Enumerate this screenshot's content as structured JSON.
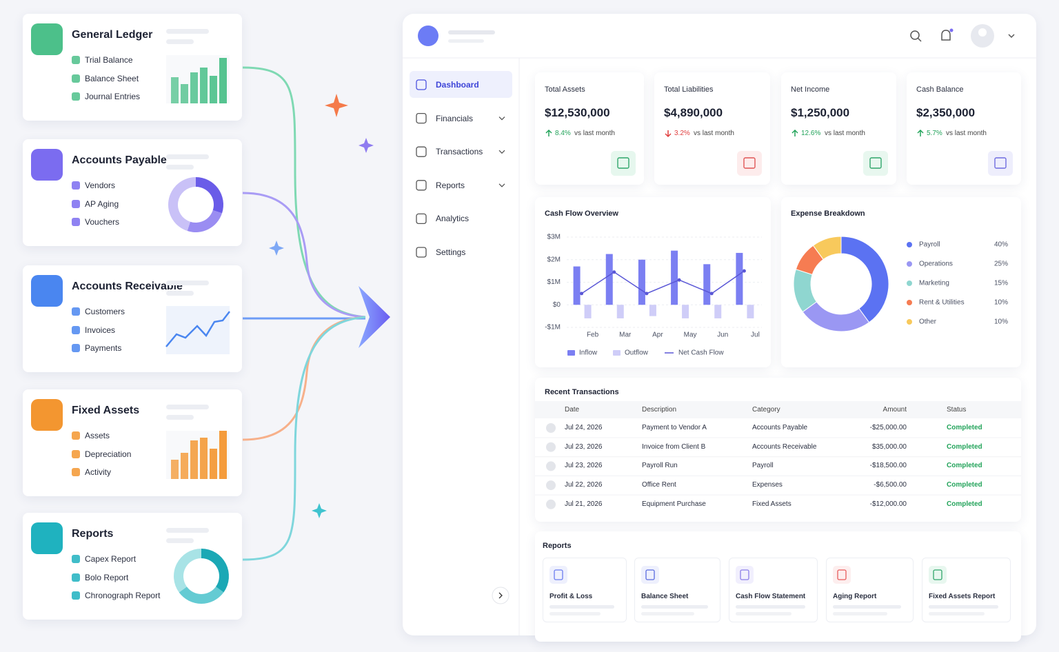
{
  "modules": [
    {
      "title": "General Ledger",
      "items": [
        "Trial Balance",
        "Balance Sheet",
        "Journal Entries"
      ]
    },
    {
      "title": "Accounts Payable",
      "items": [
        "Vendors",
        "AP Aging",
        "Vouchers"
      ]
    },
    {
      "title": "Accounts Receivable",
      "items": [
        "Customers",
        "Invoices",
        "Payments"
      ]
    },
    {
      "title": "Fixed Assets",
      "items": [
        "Assets",
        "Depreciation",
        "Activity"
      ]
    },
    {
      "title": "Reports",
      "items": [
        "Capex Report",
        "Bolo Report",
        "Chronograph Report"
      ]
    }
  ],
  "nav": [
    "Dashboard",
    "Financials",
    "Transactions",
    "Reports",
    "Analytics",
    "Settings"
  ],
  "kpis": [
    {
      "label": "Total Assets",
      "value": "$12,530,000",
      "change": "8.4%",
      "note": "vs last month",
      "trend": "up"
    },
    {
      "label": "Total Liabilities",
      "value": "$4,890,000",
      "change": "3.2%",
      "note": "vs last month",
      "trend": "down"
    },
    {
      "label": "Net Income",
      "value": "$1,250,000",
      "change": "12.6%",
      "note": "vs last month",
      "trend": "up"
    },
    {
      "label": "Cash Balance",
      "value": "$2,350,000",
      "change": "5.7%",
      "note": "vs last month",
      "trend": "up"
    }
  ],
  "chart_data": [
    {
      "type": "bar",
      "title": "Cash Flow Overview",
      "categories": [
        "Feb",
        "Mar",
        "Apr",
        "May",
        "Jun",
        "Jul"
      ],
      "series": [
        {
          "name": "Inflow",
          "color": "#7b7ff2",
          "values": [
            1.7,
            2.25,
            2.0,
            2.4,
            1.8,
            2.3
          ]
        },
        {
          "name": "Outflow",
          "color": "#cfcdf8",
          "values": [
            -0.6,
            -0.6,
            -0.5,
            -0.6,
            -0.6,
            -0.6
          ]
        },
        {
          "name": "Net Cash Flow",
          "type": "line",
          "color": "#5a57d6",
          "values": [
            0.5,
            1.45,
            0.5,
            1.1,
            0.5,
            1.5
          ]
        }
      ],
      "ylim": [
        -1,
        3
      ],
      "yticks": [
        {
          "value": -1,
          "label": "-$1M"
        },
        {
          "value": 0,
          "label": "$0"
        },
        {
          "value": 1,
          "label": "$1M"
        },
        {
          "value": 2,
          "label": "$2M"
        },
        {
          "value": 3,
          "label": "$3M"
        }
      ],
      "grid": true
    },
    {
      "type": "donut",
      "title": "Expense Breakdown",
      "categories": [
        "Payroll",
        "Operations",
        "Marketing",
        "Rent & Utilities",
        "Other"
      ],
      "values": [
        40,
        25,
        15,
        10,
        10
      ],
      "value_labels": [
        "40%",
        "25%",
        "15%",
        "10%",
        "10%"
      ],
      "colors": [
        "#5b72f2",
        "#9a97f3",
        "#8fd6d0",
        "#f67c52",
        "#f8c95c"
      ]
    }
  ],
  "transactions": {
    "title": "Recent Transactions",
    "columns": [
      "Date",
      "Description",
      "Category",
      "Amount",
      "Status"
    ],
    "rows": [
      [
        "Jul 24, 2026",
        "Payment to Vendor A",
        "Accounts Payable",
        "-$25,000.00",
        "Completed"
      ],
      [
        "Jul 23, 2026",
        "Invoice from Client B",
        "Accounts Receivable",
        "$35,000.00",
        "Completed"
      ],
      [
        "Jul 23, 2026",
        "Payroll Run",
        "Payroll",
        "-$18,500.00",
        "Completed"
      ],
      [
        "Jul 22, 2026",
        "Office Rent",
        "Expenses",
        "-$6,500.00",
        "Completed"
      ],
      [
        "Jul 21, 2026",
        "Equipment Purchase",
        "Fixed Assets",
        "-$12,000.00",
        "Completed"
      ]
    ]
  },
  "reports": {
    "title": "Reports",
    "items": [
      "Profit & Loss",
      "Balance Sheet",
      "Cash Flow Statement",
      "Aging Report",
      "Fixed Assets Report"
    ]
  }
}
